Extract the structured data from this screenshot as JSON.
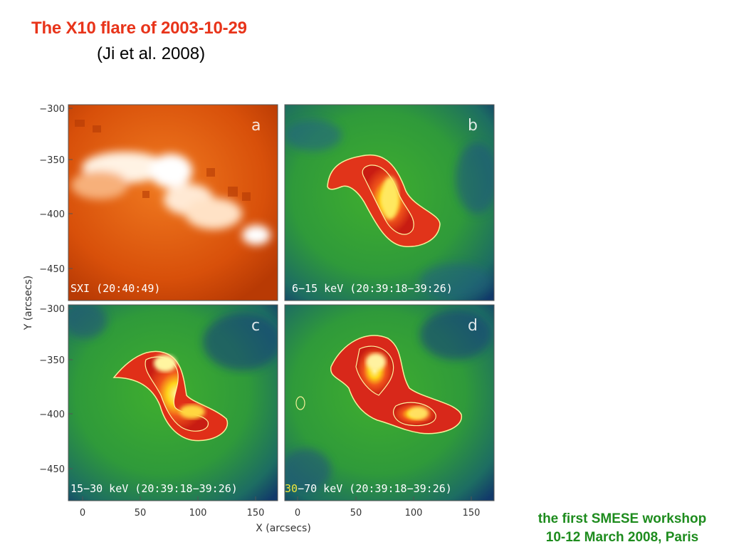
{
  "slide": {
    "title": "The X10 flare of 2003-10-29",
    "subtitle": "(Ji  et al. 2008)",
    "footer_line1": "the first SMESE workshop",
    "footer_line2": "10-12 March 2008, Paris"
  },
  "figure": {
    "x_label": "X (arcsecs)",
    "y_label": "Y (arcsecs)",
    "y_ticks": [
      "−300",
      "−350",
      "−400",
      "−450"
    ],
    "x_ticks": [
      "0",
      "50",
      "100",
      "150"
    ],
    "panels": [
      {
        "letter": "a",
        "caption": "SXI (20:40:49)",
        "colormap": "orange"
      },
      {
        "letter": "b",
        "caption": "6−15 keV (20:39:18−39:26)",
        "colormap": "green-red"
      },
      {
        "letter": "c",
        "caption": "15−30 keV (20:39:18−39:26)",
        "colormap": "green-red"
      },
      {
        "letter": "d",
        "caption": "30−70 keV (20:39:18−39:26)",
        "colormap": "green-red"
      }
    ]
  },
  "colors": {
    "title": "#e8341a",
    "footer": "#1e8c1e"
  }
}
